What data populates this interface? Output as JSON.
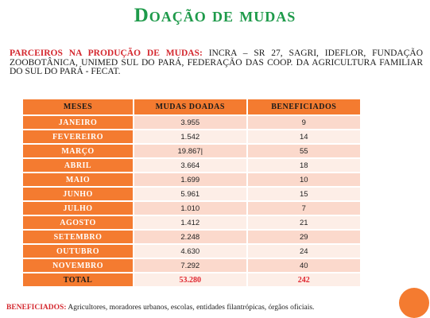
{
  "title": "Doação de mudas",
  "partners": {
    "lead": "PARCEIROS NA PRODUÇÃO DE MUDAS:",
    "text": "INCRA – SR 27, SAGRI, IDEFLOR, FUNDAÇÃO ZOOBOTÂNICA, UNIMED SUL DO PARÁ, FEDERAÇÃO DAS COOP. DA AGRICULTURA FAMILIAR DO SUL DO PARÁ - FECAT."
  },
  "table": {
    "headers": [
      "MESES",
      "MUDAS DOADAS",
      "BENEFICIADOS"
    ],
    "rows": [
      {
        "month": "JANEIRO",
        "mudas": "3.955",
        "beneficiados": "9"
      },
      {
        "month": "FEVEREIRO",
        "mudas": "1.542",
        "beneficiados": "14"
      },
      {
        "month": "MARÇO",
        "mudas": "19.867|",
        "beneficiados": "55"
      },
      {
        "month": "ABRIL",
        "mudas": "3.664",
        "beneficiados": "18"
      },
      {
        "month": "MAIO",
        "mudas": "1.699",
        "beneficiados": "10"
      },
      {
        "month": "JUNHO",
        "mudas": "5.961",
        "beneficiados": "15"
      },
      {
        "month": "JULHO",
        "mudas": "1.010",
        "beneficiados": "7"
      },
      {
        "month": "AGOSTO",
        "mudas": "1.412",
        "beneficiados": "21"
      },
      {
        "month": "SETEMBRO",
        "mudas": "2.248",
        "beneficiados": "29"
      },
      {
        "month": "OUTUBRO",
        "mudas": "4.630",
        "beneficiados": "24"
      },
      {
        "month": "NOVEMBRO",
        "mudas": "7.292",
        "beneficiados": "40"
      }
    ],
    "total": {
      "label": "TOTAL",
      "mudas": "53.280",
      "beneficiados": "242"
    }
  },
  "beneficiados_note": {
    "lead": "BENEFICIADOS:",
    "text": "Agricultores, moradores urbanos, escolas, entidades filantrópicas, órgãos oficiais."
  },
  "colors": {
    "title": "#1e9a4a",
    "accent": "#f47b30",
    "lead_red": "#d4282f"
  }
}
